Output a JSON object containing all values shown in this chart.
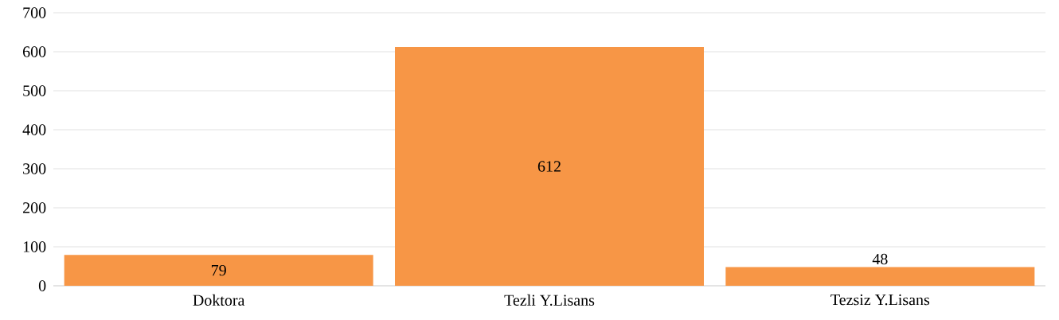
{
  "chart_data": {
    "type": "bar",
    "categories": [
      "Doktora",
      "Tezli Y.Lisans",
      "Tezsiz Y.Lisans"
    ],
    "values": [
      79,
      612,
      48
    ],
    "color": "#f79646",
    "ylim": [
      0,
      700
    ],
    "yticks": [
      0,
      100,
      200,
      300,
      400,
      500,
      600,
      700
    ],
    "grid": "y",
    "data_labels": true
  }
}
